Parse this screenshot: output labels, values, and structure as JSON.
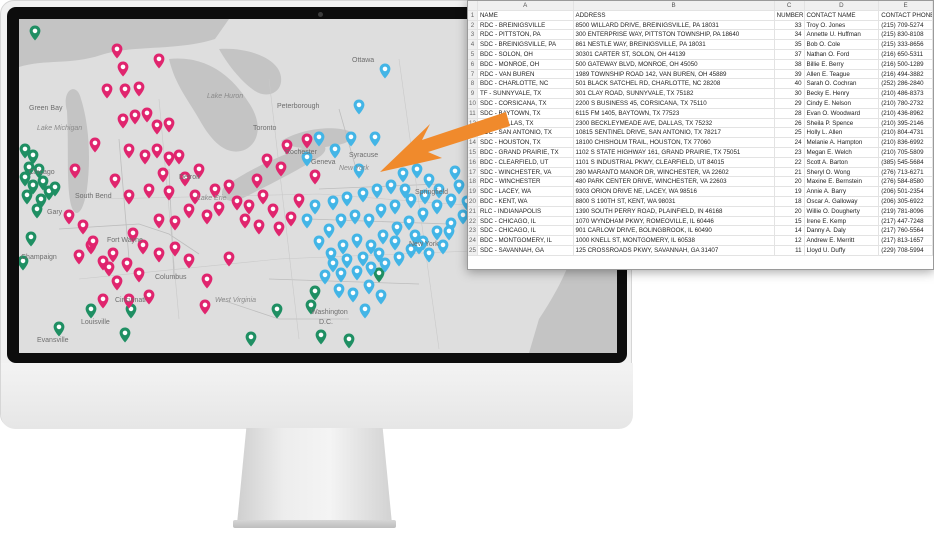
{
  "colors": {
    "warehouse_pin": "#1f8f63",
    "distribution_pin": "#e0256e",
    "service_pin": "#43b5e6",
    "arrow": "#f08a2c"
  },
  "map": {
    "labels": {
      "ottawa": "Ottawa",
      "lake_huron": "Lake Huron",
      "lake_michigan": "Lake Michigan",
      "toronto": "Toronto",
      "peterborough": "Peterborough",
      "green_bay": "Green Bay",
      "syracuse": "Syracuse",
      "new_york_state": "New York",
      "geneva": "Geneva",
      "rochester": "Rochester",
      "south_bend": "South Bend",
      "gary": "Gary",
      "detroit": "Detroit",
      "fort_wayne": "Fort Wayne",
      "columbus": "Columbus",
      "champaign": "Champaign",
      "cincinnati": "Cincinnati",
      "louisville": "Louisville",
      "west_virginia": "West Virginia",
      "washington": "Washington",
      "dc": "D.C.",
      "evansville": "Evansville",
      "chicago": "Chicago",
      "new_york_city": "New York",
      "springfield": "Springfield",
      "lake_erie": "Lake Erie"
    }
  },
  "spreadsheet": {
    "column_letters": [
      "A",
      "B",
      "C",
      "D",
      "E"
    ],
    "headers": [
      "NAME",
      "ADDRESS",
      "NUMBER",
      "CONTACT NAME",
      "CONTACT PHONE"
    ],
    "rows": [
      [
        "RDC - BREINIGSVILLE",
        "8500 WILLARD DRIVE, BREINIGSVILLE, PA 18031",
        "33",
        "Troy O. Jones",
        "(215) 709-5274"
      ],
      [
        "RDC - PITTSTON, PA",
        "300 ENTERPRISE WAY, PITTSTON TOWNSHIP, PA 18640",
        "34",
        "Annette U. Huffman",
        "(215) 830-8108"
      ],
      [
        "SDC - BREINIGSVILLE, PA",
        "861 NESTLE WAY, BREINIGSVILLE, PA 18031",
        "35",
        "Bob O. Cole",
        "(215) 333-8656"
      ],
      [
        "BDC - SOLON, OH",
        "30301 CARTER ST, SOLON, OH 44139",
        "37",
        "Nathan O. Ford",
        "(216) 650-5311"
      ],
      [
        "BDC - MONROE, OH",
        "500 GATEWAY BLVD, MONROE, OH 45050",
        "38",
        "Billie E. Berry",
        "(216) 500-1289"
      ],
      [
        "RDC - VAN BUREN",
        "1989 TOWNSHIP ROAD 142, VAN BUREN, OH 45889",
        "39",
        "Allen E. Teague",
        "(216) 494-3882"
      ],
      [
        "BDC - CHARLOTTE, NC",
        "501 BLACK SATCHEL RD, CHARLOTTE, NC 28208",
        "40",
        "Sarah O. Cochran",
        "(252) 286-2840"
      ],
      [
        "TF - SUNNYVALE, TX",
        "301 CLAY ROAD, SUNNYVALE, TX 75182",
        "30",
        "Becky E. Henry",
        "(210) 486-8373"
      ],
      [
        "SDC - CORSICANA, TX",
        "2200 S BUSINESS 45, CORSICANA, TX 75110",
        "29",
        "Cindy E. Nelson",
        "(210) 780-2732"
      ],
      [
        "SDC - BAYTOWN, TX",
        "6115 FM 1405, BAYTOWN, TX 77523",
        "28",
        "Evan O. Woodward",
        "(210) 436-8962"
      ],
      [
        "SDC - DALLAS, TX",
        "2300 BECKLEYMEADE AVE, DALLAS, TX 75232",
        "26",
        "Sheila P. Spence",
        "(210) 395-2146"
      ],
      [
        "SDC - SAN ANTONIO, TX",
        "10815 SENTINEL DRIVE, SAN ANTONIO, TX 78217",
        "25",
        "Holly L. Allen",
        "(210) 804-4731"
      ],
      [
        "SDC - HOUSTON, TX",
        "18100 CHISHOLM TRAIL, HOUSTON, TX 77060",
        "24",
        "Melanie A. Hampton",
        "(210) 836-6992"
      ],
      [
        "BDC - GRAND PRAIRIE, TX",
        "1102 S STATE HIGHWAY 161, GRAND PRAIRIE, TX 75051",
        "23",
        "Megan E. Welch",
        "(210) 705-5809"
      ],
      [
        "BDC - CLEARFIELD, UT",
        "1101 S INDUSTRIAL PKWY, CLEARFIELD, UT 84015",
        "22",
        "Scott A. Barton",
        "(385) 545-5684"
      ],
      [
        "SDC - WINCHESTER, VA",
        "280 MARANTO MANOR DR, WINCHESTER, VA 22602",
        "21",
        "Sheryl O. Wong",
        "(276) 713-6271"
      ],
      [
        "RDC - WINCHESTER",
        "480 PARK CENTER DRIVE, WINCHESTER, VA 22603",
        "20",
        "Maxine E. Bernstein",
        "(276) 584-8580"
      ],
      [
        "SDC - LACEY, WA",
        "9303 ORION DRIVE NE, LACEY, WA 98516",
        "19",
        "Annie A. Barry",
        "(206) 501-2354"
      ],
      [
        "BDC - KENT, WA",
        "8800 S 190TH ST, KENT, WA 98031",
        "18",
        "Oscar A. Galloway",
        "(206) 305-6922"
      ],
      [
        "RLC - INDIANAPOLIS",
        "1390 SOUTH PERRY ROAD, PLAINFIELD, IN 46168",
        "20",
        "Willie O. Dougherty",
        "(219) 781-8096"
      ],
      [
        "SDC - CHICAGO, IL",
        "1070 WYNDHAM PKWY, ROMEOVILLE, IL 60446",
        "15",
        "Irene E. Kemp",
        "(217) 447-7248"
      ],
      [
        "SDC - CHICAGO, IL",
        "901 CARLOW DRIVE, BOLINGBROOK, IL 60490",
        "14",
        "Danny A. Daly",
        "(217) 760-5564"
      ],
      [
        "BDC - MONTGOMERY, IL",
        "1000 KNELL ST, MONTGOMERY, IL 60538",
        "12",
        "Andrew E. Merritt",
        "(217) 813-1657"
      ],
      [
        "SDC - SAVANNAH, GA",
        "125 CROSSROADS PKWY, SAVANNAH, GA 31407",
        "11",
        "Lloyd U. Duffy",
        "(229) 708-5994"
      ]
    ]
  }
}
